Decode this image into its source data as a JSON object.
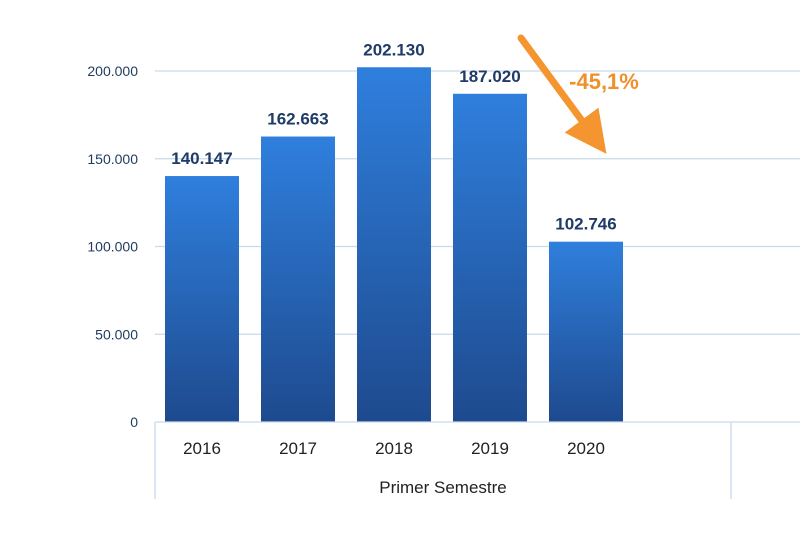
{
  "chart_data": {
    "type": "bar",
    "categories": [
      "2016",
      "2017",
      "2018",
      "2019",
      "2020"
    ],
    "values": [
      140147,
      162663,
      202130,
      187020,
      102746
    ],
    "value_labels": [
      "140.147",
      "162.663",
      "202.130",
      "187.020",
      "102.746"
    ],
    "group_label": "Primer Semestre",
    "ylim": [
      0,
      200000
    ],
    "yticks": [
      0,
      50000,
      100000,
      150000,
      200000
    ],
    "ytick_labels": [
      "0",
      "50.000",
      "100.000",
      "150.000",
      "200.000"
    ],
    "grid": true,
    "annotation": {
      "text": "-45,1%",
      "from_category": "2019",
      "to_category": "2020"
    },
    "colors": {
      "bar_top": "#2f7fdd",
      "bar_bottom": "#1e4a8e",
      "grid": "#c9d9ea",
      "arrow": "#f5952f"
    }
  }
}
